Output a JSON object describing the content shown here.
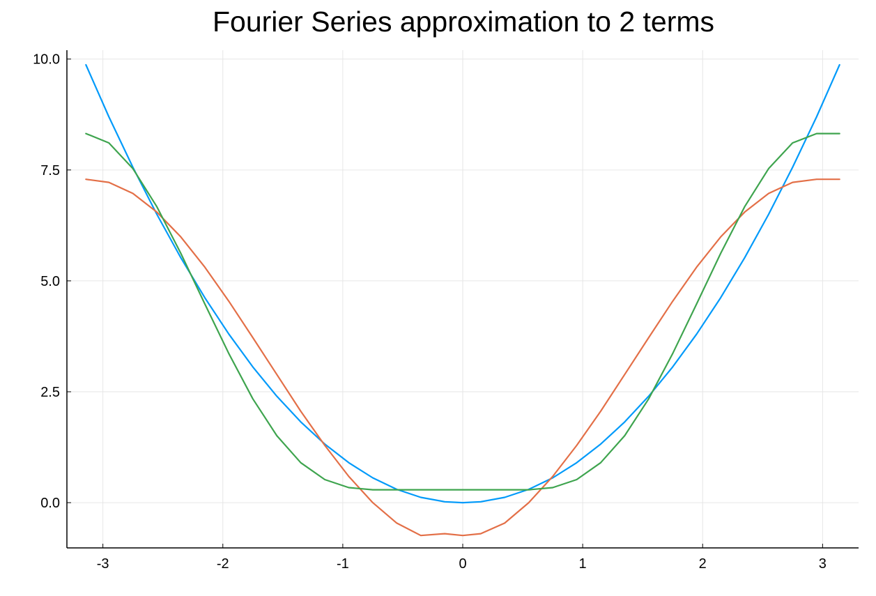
{
  "chart_data": {
    "type": "line",
    "title": "Fourier Series approximation to 2 terms",
    "xlabel": "",
    "ylabel": "",
    "xlim": [
      -3.3,
      3.3
    ],
    "ylim": [
      -1.02,
      10.2
    ],
    "xticks": [
      {
        "value": -3,
        "label": "-3"
      },
      {
        "value": -2,
        "label": "-2"
      },
      {
        "value": -1,
        "label": "-1"
      },
      {
        "value": 0,
        "label": "0"
      },
      {
        "value": 1,
        "label": "1"
      },
      {
        "value": 2,
        "label": "2"
      },
      {
        "value": 3,
        "label": "3"
      }
    ],
    "yticks": [
      {
        "value": 0,
        "label": "0.0"
      },
      {
        "value": 2.5,
        "label": "2.5"
      },
      {
        "value": 5,
        "label": "5.0"
      },
      {
        "value": 7.5,
        "label": "7.5"
      },
      {
        "value": 10,
        "label": "10.0"
      }
    ],
    "grid": true,
    "legend": "none",
    "series": [
      {
        "color": "#009AFA",
        "x": [
          -3.1416,
          -2.95,
          -2.75,
          -2.55,
          -2.35,
          -2.15,
          -1.95,
          -1.75,
          -1.55,
          -1.35,
          -1.15,
          -0.95,
          -0.75,
          -0.55,
          -0.35,
          -0.15,
          0,
          0.15,
          0.35,
          0.55,
          0.75,
          0.95,
          1.15,
          1.35,
          1.55,
          1.75,
          1.95,
          2.15,
          2.35,
          2.55,
          2.75,
          2.95,
          3.1416
        ],
        "y": [
          9.87,
          8.7,
          7.56,
          6.5,
          5.52,
          4.62,
          3.8,
          3.06,
          2.4,
          1.82,
          1.32,
          0.9,
          0.56,
          0.3,
          0.12,
          0.02,
          0.0,
          0.02,
          0.12,
          0.3,
          0.56,
          0.9,
          1.32,
          1.82,
          2.4,
          3.06,
          3.8,
          4.62,
          5.52,
          6.5,
          7.56,
          8.7,
          9.87
        ]
      },
      {
        "color": "#E36F47",
        "x": [
          -3.1416,
          -2.95,
          -2.75,
          -2.55,
          -2.35,
          -2.15,
          -1.95,
          -1.75,
          -1.55,
          -1.35,
          -1.15,
          -0.95,
          -0.75,
          -0.55,
          -0.35,
          -0.15,
          0,
          0.15,
          0.35,
          0.55,
          0.75,
          0.95,
          1.15,
          1.35,
          1.55,
          1.75,
          1.95,
          2.15,
          2.35,
          2.55,
          2.75,
          2.95,
          3.1416
        ],
        "y": [
          7.29,
          7.22,
          6.97,
          6.55,
          5.99,
          5.31,
          4.54,
          3.72,
          2.89,
          2.06,
          1.29,
          0.59,
          -0.0,
          -0.46,
          -0.74,
          -0.7,
          -0.74,
          -0.7,
          -0.46,
          -0.0,
          0.59,
          1.29,
          2.06,
          2.89,
          3.72,
          4.54,
          5.31,
          5.99,
          6.55,
          6.97,
          7.22,
          7.29,
          7.29
        ]
      },
      {
        "color": "#3EA44E",
        "x": [
          -3.1416,
          -2.95,
          -2.75,
          -2.55,
          -2.35,
          -2.15,
          -1.95,
          -1.75,
          -1.55,
          -1.35,
          -1.15,
          -0.95,
          -0.75,
          -0.55,
          -0.35,
          -0.15,
          0,
          0.15,
          0.35,
          0.55,
          0.75,
          0.95,
          1.15,
          1.35,
          1.55,
          1.75,
          1.95,
          2.15,
          2.35,
          2.55,
          2.75,
          2.95,
          3.1416
        ],
        "y": [
          8.32,
          8.11,
          7.53,
          6.67,
          5.62,
          4.48,
          3.36,
          2.34,
          1.51,
          0.9,
          0.52,
          0.34,
          0.29,
          0.29,
          0.29,
          0.29,
          0.29,
          0.29,
          0.29,
          0.29,
          0.34,
          0.52,
          0.9,
          1.51,
          2.34,
          3.36,
          4.48,
          5.62,
          6.67,
          7.53,
          8.11,
          8.32,
          8.32
        ]
      }
    ]
  }
}
